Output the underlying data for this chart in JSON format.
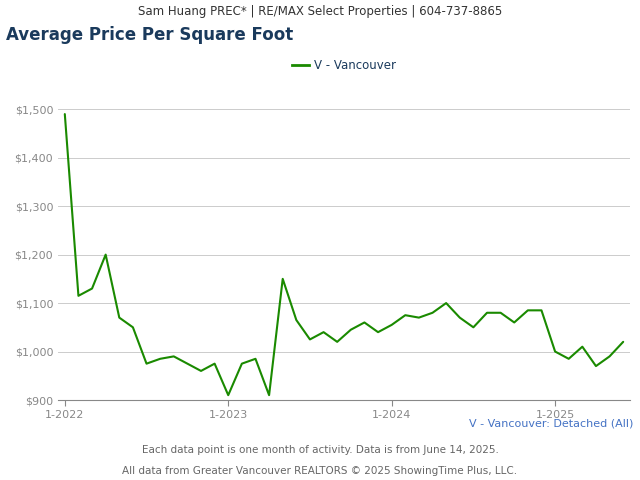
{
  "header_text": "Sam Huang PREC* | RE/MAX Select Properties | 604-737-8865",
  "title": "Average Price Per Square Foot",
  "legend_label": "V - Vancouver",
  "subtitle_right": "V - Vancouver: Detached (All)",
  "footer_text": "Each data point is one month of activity. Data is from June 14, 2025.",
  "footer_text2": "All data from Greater Vancouver REALTORS © 2025 ShowingTime Plus, LLC.",
  "line_color": "#1a8a00",
  "background_color": "#ffffff",
  "header_bg_color": "#d8d8d8",
  "ylim": [
    900,
    1550
  ],
  "yticks": [
    900,
    1000,
    1100,
    1200,
    1300,
    1400,
    1500
  ],
  "xlabel_ticks": [
    "1-2022",
    "1-2023",
    "1-2024",
    "1-2025"
  ],
  "x_values": [
    0,
    1,
    2,
    3,
    4,
    5,
    6,
    7,
    8,
    9,
    10,
    11,
    12,
    13,
    14,
    15,
    16,
    17,
    18,
    19,
    20,
    21,
    22,
    23,
    24,
    25,
    26,
    27,
    28,
    29,
    30,
    31,
    32,
    33,
    34,
    35,
    36,
    37,
    38,
    39,
    40,
    41
  ],
  "y_values": [
    1490,
    1115,
    1130,
    1200,
    1070,
    1050,
    975,
    985,
    990,
    975,
    960,
    975,
    910,
    975,
    985,
    910,
    1150,
    1065,
    1025,
    1040,
    1020,
    1045,
    1060,
    1040,
    1055,
    1075,
    1070,
    1080,
    1100,
    1070,
    1050,
    1080,
    1080,
    1060,
    1085,
    1085,
    1000,
    985,
    1010,
    970,
    990,
    1020
  ],
  "x_tick_positions": [
    0,
    12,
    24,
    36
  ],
  "title_color": "#1a3a5c",
  "axis_color": "#888888",
  "grid_color": "#cccccc",
  "subtitle_color": "#4472c4",
  "footer_color": "#666666",
  "header_text_color": "#333333"
}
